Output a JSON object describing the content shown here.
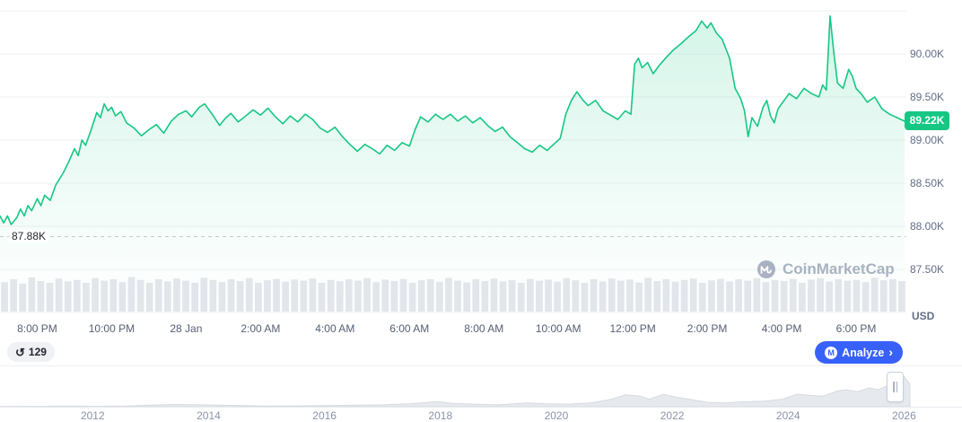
{
  "chart_data": [
    {
      "name": "price-intraday",
      "type": "area",
      "title": "BTC price in USD over last 24 hours",
      "x_unit": "hours since 7:00 PM (27 Jan)",
      "x_range": [
        0,
        24.35
      ],
      "y_range_thousands_usd": [
        87.5,
        90.5
      ],
      "grid": true,
      "line_color": "#16c784",
      "current_price_label": "89.22K",
      "current_price": 89.22,
      "ref_line": {
        "label": "87.88K",
        "value": 87.88
      },
      "y_ticks": [
        {
          "label": "90.00K",
          "value": 90.0
        },
        {
          "label": "89.50K",
          "value": 89.5
        },
        {
          "label": "89.00K",
          "value": 89.0
        },
        {
          "label": "88.50K",
          "value": 88.5
        },
        {
          "label": "88.00K",
          "value": 88.0
        },
        {
          "label": "87.50K",
          "value": 87.5
        }
      ],
      "y_grid_extra": [
        90.5
      ],
      "x_ticks": [
        {
          "label": "8:00 PM",
          "t": 1
        },
        {
          "label": "10:00 PM",
          "t": 3
        },
        {
          "label": "28 Jan",
          "t": 5
        },
        {
          "label": "2:00 AM",
          "t": 7
        },
        {
          "label": "4:00 AM",
          "t": 9
        },
        {
          "label": "6:00 AM",
          "t": 11
        },
        {
          "label": "8:00 AM",
          "t": 13
        },
        {
          "label": "10:00 AM",
          "t": 15
        },
        {
          "label": "12:00 PM",
          "t": 17
        },
        {
          "label": "2:00 PM",
          "t": 19
        },
        {
          "label": "4:00 PM",
          "t": 21
        },
        {
          "label": "6:00 PM",
          "t": 23
        }
      ],
      "points": [
        [
          0,
          88.12
        ],
        [
          0.1,
          88.04
        ],
        [
          0.2,
          88.12
        ],
        [
          0.3,
          88.02
        ],
        [
          0.45,
          88.1
        ],
        [
          0.55,
          88.2
        ],
        [
          0.65,
          88.12
        ],
        [
          0.75,
          88.24
        ],
        [
          0.85,
          88.18
        ],
        [
          1,
          88.32
        ],
        [
          1.1,
          88.24
        ],
        [
          1.2,
          88.36
        ],
        [
          1.35,
          88.3
        ],
        [
          1.5,
          88.48
        ],
        [
          1.7,
          88.62
        ],
        [
          1.85,
          88.75
        ],
        [
          2,
          88.9
        ],
        [
          2.1,
          88.82
        ],
        [
          2.2,
          89.0
        ],
        [
          2.3,
          88.94
        ],
        [
          2.45,
          89.12
        ],
        [
          2.6,
          89.32
        ],
        [
          2.7,
          89.26
        ],
        [
          2.8,
          89.42
        ],
        [
          2.9,
          89.34
        ],
        [
          3,
          89.38
        ],
        [
          3.1,
          89.28
        ],
        [
          3.25,
          89.33
        ],
        [
          3.4,
          89.2
        ],
        [
          3.6,
          89.14
        ],
        [
          3.8,
          89.05
        ],
        [
          4,
          89.12
        ],
        [
          4.2,
          89.18
        ],
        [
          4.4,
          89.08
        ],
        [
          4.6,
          89.22
        ],
        [
          4.8,
          89.3
        ],
        [
          5,
          89.34
        ],
        [
          5.15,
          89.27
        ],
        [
          5.35,
          89.38
        ],
        [
          5.5,
          89.42
        ],
        [
          5.7,
          89.3
        ],
        [
          5.9,
          89.17
        ],
        [
          6.05,
          89.25
        ],
        [
          6.2,
          89.31
        ],
        [
          6.4,
          89.21
        ],
        [
          6.6,
          89.28
        ],
        [
          6.8,
          89.35
        ],
        [
          7,
          89.29
        ],
        [
          7.2,
          89.37
        ],
        [
          7.4,
          89.27
        ],
        [
          7.6,
          89.19
        ],
        [
          7.8,
          89.28
        ],
        [
          8,
          89.21
        ],
        [
          8.2,
          89.3
        ],
        [
          8.4,
          89.24
        ],
        [
          8.6,
          89.14
        ],
        [
          8.8,
          89.09
        ],
        [
          9,
          89.15
        ],
        [
          9.2,
          89.04
        ],
        [
          9.4,
          88.95
        ],
        [
          9.6,
          88.87
        ],
        [
          9.8,
          88.95
        ],
        [
          10,
          88.9
        ],
        [
          10.2,
          88.84
        ],
        [
          10.4,
          88.94
        ],
        [
          10.6,
          88.88
        ],
        [
          10.8,
          88.97
        ],
        [
          11,
          88.93
        ],
        [
          11.15,
          89.12
        ],
        [
          11.3,
          89.27
        ],
        [
          11.5,
          89.21
        ],
        [
          11.7,
          89.3
        ],
        [
          11.9,
          89.24
        ],
        [
          12.1,
          89.3
        ],
        [
          12.3,
          89.22
        ],
        [
          12.5,
          89.28
        ],
        [
          12.7,
          89.2
        ],
        [
          12.9,
          89.26
        ],
        [
          13.1,
          89.17
        ],
        [
          13.3,
          89.1
        ],
        [
          13.5,
          89.15
        ],
        [
          13.7,
          89.04
        ],
        [
          13.9,
          88.97
        ],
        [
          14.1,
          88.9
        ],
        [
          14.3,
          88.86
        ],
        [
          14.5,
          88.94
        ],
        [
          14.7,
          88.88
        ],
        [
          14.9,
          88.96
        ],
        [
          15.05,
          89.02
        ],
        [
          15.2,
          89.3
        ],
        [
          15.35,
          89.46
        ],
        [
          15.5,
          89.56
        ],
        [
          15.65,
          89.47
        ],
        [
          15.8,
          89.4
        ],
        [
          16,
          89.46
        ],
        [
          16.2,
          89.34
        ],
        [
          16.4,
          89.29
        ],
        [
          16.6,
          89.24
        ],
        [
          16.8,
          89.34
        ],
        [
          16.95,
          89.3
        ],
        [
          17.05,
          89.88
        ],
        [
          17.15,
          89.95
        ],
        [
          17.25,
          89.84
        ],
        [
          17.4,
          89.9
        ],
        [
          17.55,
          89.77
        ],
        [
          17.7,
          89.86
        ],
        [
          17.9,
          89.96
        ],
        [
          18.1,
          90.05
        ],
        [
          18.3,
          90.12
        ],
        [
          18.5,
          90.2
        ],
        [
          18.7,
          90.27
        ],
        [
          18.85,
          90.38
        ],
        [
          19,
          90.3
        ],
        [
          19.1,
          90.36
        ],
        [
          19.25,
          90.24
        ],
        [
          19.4,
          90.17
        ],
        [
          19.6,
          89.95
        ],
        [
          19.75,
          89.6
        ],
        [
          19.9,
          89.48
        ],
        [
          20,
          89.34
        ],
        [
          20.1,
          89.04
        ],
        [
          20.2,
          89.26
        ],
        [
          20.35,
          89.16
        ],
        [
          20.5,
          89.38
        ],
        [
          20.6,
          89.46
        ],
        [
          20.7,
          89.28
        ],
        [
          20.8,
          89.2
        ],
        [
          20.9,
          89.36
        ],
        [
          21,
          89.42
        ],
        [
          21.2,
          89.54
        ],
        [
          21.4,
          89.48
        ],
        [
          21.6,
          89.6
        ],
        [
          21.8,
          89.54
        ],
        [
          22,
          89.5
        ],
        [
          22.1,
          89.64
        ],
        [
          22.2,
          89.58
        ],
        [
          22.3,
          90.44
        ],
        [
          22.4,
          90.02
        ],
        [
          22.5,
          89.66
        ],
        [
          22.65,
          89.6
        ],
        [
          22.8,
          89.82
        ],
        [
          22.9,
          89.74
        ],
        [
          23,
          89.6
        ],
        [
          23.15,
          89.53
        ],
        [
          23.3,
          89.44
        ],
        [
          23.5,
          89.5
        ],
        [
          23.7,
          89.36
        ],
        [
          23.9,
          89.3
        ],
        [
          24.1,
          89.26
        ],
        [
          24.3,
          89.22
        ]
      ]
    },
    {
      "name": "volume",
      "type": "bar",
      "unit": "relative height 0-1 (values not labeled on screen)",
      "values": [
        0.82,
        0.9,
        0.78,
        0.95,
        0.85,
        0.8,
        0.92,
        0.84,
        0.88,
        0.8,
        0.93,
        0.86,
        0.9,
        0.82,
        0.96,
        0.88,
        0.8,
        0.9,
        0.84,
        0.92,
        0.86,
        0.8,
        0.94,
        0.88,
        0.82,
        0.9,
        0.85,
        0.93,
        0.8,
        0.87,
        0.91,
        0.83,
        0.89,
        0.86,
        0.92,
        0.8,
        0.88,
        0.84,
        0.9,
        0.86,
        0.93,
        0.82,
        0.89,
        0.85,
        0.91,
        0.8,
        0.87,
        0.9,
        0.83,
        0.94,
        0.86,
        0.81,
        0.9,
        0.85,
        0.92,
        0.84,
        0.88,
        0.8,
        0.91,
        0.86,
        0.89,
        0.83,
        0.93,
        0.87,
        0.8,
        0.9,
        0.84,
        0.92,
        0.86,
        0.89,
        0.81,
        0.94,
        0.85,
        0.9,
        0.83,
        0.88,
        0.92,
        0.8,
        0.87,
        0.91,
        0.84,
        0.9,
        0.86,
        0.93,
        0.82,
        0.88,
        0.85,
        0.91,
        0.8,
        0.89,
        0.93,
        0.84,
        0.9,
        0.86,
        0.88,
        0.82,
        0.94,
        0.87,
        0.9,
        0.85
      ]
    },
    {
      "name": "history-overview",
      "type": "area",
      "title": "all-time price overview scrubber",
      "x_range": [
        2010.4,
        2027
      ],
      "x_ticks": [
        "2012",
        "2014",
        "2016",
        "2018",
        "2020",
        "2022",
        "2024",
        "2026"
      ],
      "value_unit": "relative 0-1",
      "points": [
        [
          2010.4,
          0.005
        ],
        [
          2011,
          0.01
        ],
        [
          2011.6,
          0.02
        ],
        [
          2012,
          0.012
        ],
        [
          2012.5,
          0.015
        ],
        [
          2013,
          0.04
        ],
        [
          2013.4,
          0.06
        ],
        [
          2013.9,
          0.05
        ],
        [
          2014.4,
          0.035
        ],
        [
          2015,
          0.02
        ],
        [
          2015.6,
          0.025
        ],
        [
          2016,
          0.03
        ],
        [
          2016.5,
          0.04
        ],
        [
          2017,
          0.05
        ],
        [
          2017.5,
          0.08
        ],
        [
          2017.95,
          0.14
        ],
        [
          2018.2,
          0.09
        ],
        [
          2018.6,
          0.07
        ],
        [
          2019,
          0.05
        ],
        [
          2019.5,
          0.1
        ],
        [
          2019.8,
          0.08
        ],
        [
          2020.2,
          0.07
        ],
        [
          2020.6,
          0.1
        ],
        [
          2020.95,
          0.2
        ],
        [
          2021.2,
          0.32
        ],
        [
          2021.45,
          0.28
        ],
        [
          2021.6,
          0.2
        ],
        [
          2021.85,
          0.33
        ],
        [
          2022.05,
          0.26
        ],
        [
          2022.3,
          0.2
        ],
        [
          2022.6,
          0.12
        ],
        [
          2022.9,
          0.1
        ],
        [
          2023.2,
          0.13
        ],
        [
          2023.6,
          0.15
        ],
        [
          2023.9,
          0.2
        ],
        [
          2024.15,
          0.33
        ],
        [
          2024.4,
          0.3
        ],
        [
          2024.6,
          0.28
        ],
        [
          2024.85,
          0.42
        ],
        [
          2025.0,
          0.45
        ],
        [
          2025.2,
          0.4
        ],
        [
          2025.4,
          0.5
        ],
        [
          2025.55,
          0.45
        ],
        [
          2025.7,
          0.55
        ],
        [
          2025.85,
          0.75
        ],
        [
          2025.95,
          0.9
        ],
        [
          2026.05,
          0.7
        ],
        [
          2026.1,
          0.6
        ]
      ]
    }
  ],
  "axis": {
    "currency_label": "USD"
  },
  "watermark": {
    "text": "CoinMarketCap"
  },
  "controls": {
    "count_badge": "129",
    "analyze_label": "Analyze",
    "chevron": "›"
  },
  "icons": {
    "clock": "history-clock-icon",
    "cmc_logo": "coinmarketcap-logo-icon",
    "chevron_right": "chevron-right-icon",
    "grip": "drag-handle-icon"
  },
  "colors": {
    "line": "#16c784",
    "badge_bg": "#16c784",
    "analyze_bg": "#3861fb",
    "grid": "#eff2f5",
    "ref_dash": "#c3cad6",
    "volume_bar": "#e2e5ea",
    "axis_text": "#616e85",
    "watermark": "#a9b2c2",
    "mini_fill": "#e6e9ed",
    "mini_stroke": "#d7dbe1"
  }
}
